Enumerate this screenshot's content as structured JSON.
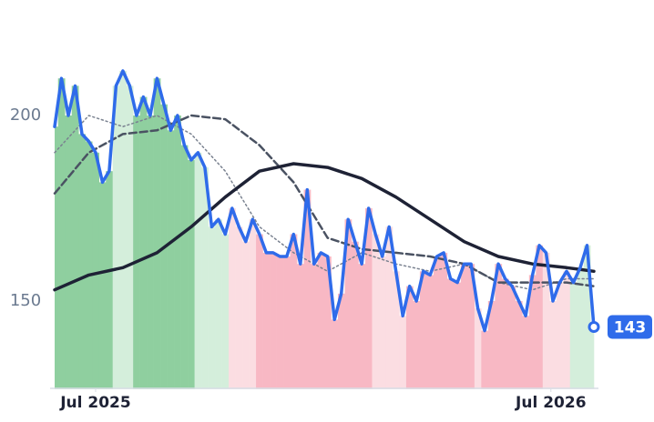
{
  "chart_data": {
    "type": "line",
    "xlim": [
      0,
      79
    ],
    "xticks": [
      {
        "value": 6,
        "label": "Jul 2025"
      },
      {
        "value": 72.7,
        "label": "Jul 2026"
      }
    ],
    "ylim": [
      127,
      230
    ],
    "yticks": [
      150,
      200
    ],
    "grid": false,
    "series": [
      {
        "color": "#2f6bea",
        "x": [
          0,
          1,
          2,
          3,
          4,
          5,
          6,
          7,
          8,
          9,
          10,
          11,
          12,
          13,
          14,
          15,
          16,
          17,
          18,
          19,
          20,
          21,
          22,
          23,
          24,
          25,
          26,
          27,
          28,
          29,
          30,
          31,
          32,
          33,
          34,
          35,
          36,
          37,
          38,
          39,
          40,
          41,
          42,
          43,
          44,
          45,
          46,
          47,
          48,
          49,
          50,
          51,
          52,
          53,
          54,
          55,
          56,
          57,
          58,
          59,
          60,
          61,
          62,
          63,
          64,
          65,
          66,
          67,
          68,
          69,
          70,
          71,
          72,
          73,
          74,
          75,
          76,
          77,
          78,
          79
        ],
        "values": [
          197,
          210,
          200,
          208,
          195,
          193,
          190,
          182,
          185,
          208,
          212,
          208,
          200,
          205,
          200,
          210,
          203,
          196,
          200,
          192,
          188,
          190,
          186,
          170,
          172,
          168,
          175,
          170,
          166,
          172,
          168,
          163,
          163,
          162,
          162,
          168,
          160,
          180,
          160,
          163,
          162,
          145,
          152,
          172,
          166,
          160,
          175,
          168,
          162,
          170,
          158,
          146,
          154,
          150,
          158,
          157,
          162,
          163,
          156,
          155,
          160,
          160,
          148,
          142,
          150,
          160,
          156,
          154,
          150,
          146,
          157,
          165,
          163,
          150,
          155,
          158,
          155,
          159,
          165,
          143
        ]
      },
      {
        "color": "#1e2235",
        "x": [
          0,
          5,
          10,
          15,
          20,
          25,
          30,
          35,
          40,
          45,
          50,
          55,
          60,
          65,
          70,
          75,
          79
        ],
        "values": [
          153,
          157,
          159,
          163,
          170,
          178,
          185,
          187,
          186,
          183,
          178,
          172,
          166,
          162,
          160,
          159,
          158
        ]
      },
      {
        "color": "#4a5262",
        "x": [
          0,
          5,
          10,
          15,
          20,
          25,
          30,
          35,
          40,
          45,
          50,
          55,
          60,
          65,
          70,
          75,
          79
        ],
        "values": [
          179,
          190,
          195,
          196,
          200,
          199,
          192,
          182,
          167,
          164,
          163,
          162,
          160,
          155,
          155,
          155,
          154
        ]
      },
      {
        "color": "#7a8290",
        "x": [
          0,
          5,
          10,
          15,
          20,
          25,
          30,
          35,
          40,
          45,
          50,
          55,
          60,
          65,
          70,
          75,
          79
        ],
        "values": [
          190,
          200,
          197,
          200,
          195,
          185,
          170,
          163,
          158,
          163,
          160,
          158,
          160,
          155,
          153,
          156,
          156
        ]
      }
    ],
    "bands": [
      {
        "end": 8.5,
        "color": "#8fcf9f"
      },
      {
        "end": 11.5,
        "color": "#d4eedb"
      },
      {
        "end": 20.5,
        "color": "#8fcf9f"
      },
      {
        "end": 25.5,
        "color": "#d4eedb"
      },
      {
        "end": 29.5,
        "color": "#fbdde2"
      },
      {
        "end": 46.5,
        "color": "#f8b8c4"
      },
      {
        "end": 51.5,
        "color": "#fbdde2"
      },
      {
        "end": 61.5,
        "color": "#f8b8c4"
      },
      {
        "end": 62.5,
        "color": "#fbdde2"
      },
      {
        "end": 71.5,
        "color": "#f8b8c4"
      },
      {
        "end": 75.5,
        "color": "#fbdde2"
      },
      {
        "end": 80,
        "color": "#d4eedb"
      }
    ]
  }
}
